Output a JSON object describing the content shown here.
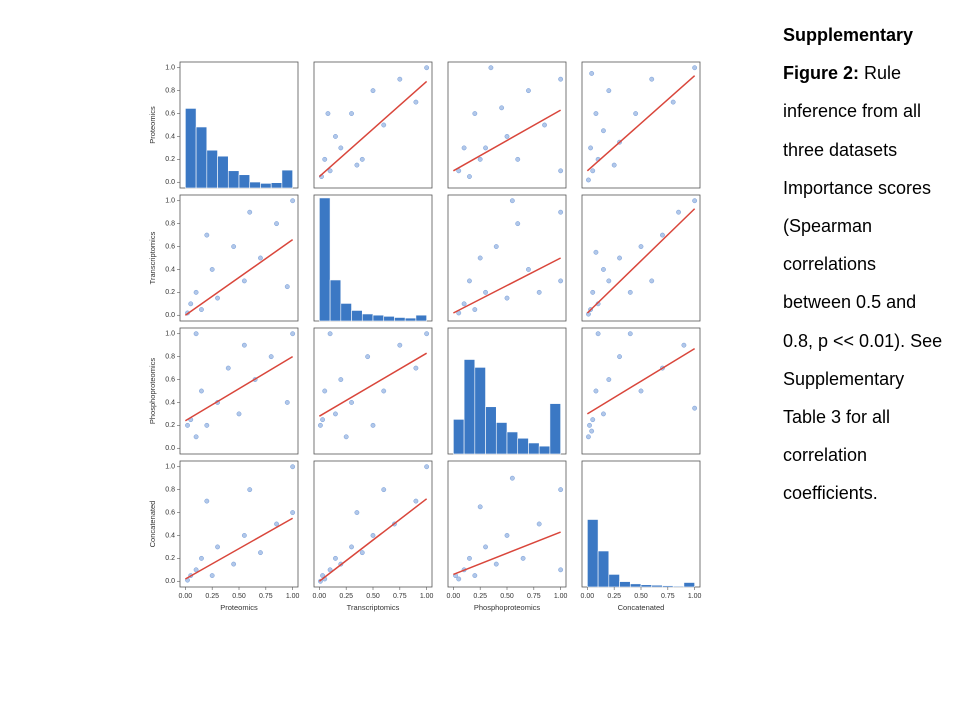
{
  "chart_data": {
    "type": "pairplot",
    "variables": [
      "Proteomics",
      "Transcriptomics",
      "Phosphoproteomics",
      "Concatenated"
    ],
    "xlim": [
      -0.05,
      1.05
    ],
    "ylim": [
      -0.05,
      1.05
    ],
    "xticks": [
      {
        "value": 0,
        "label": "0.00"
      },
      {
        "value": 0.25,
        "label": "0.25"
      },
      {
        "value": 0.5,
        "label": "0.50"
      },
      {
        "value": 0.75,
        "label": "0.75"
      },
      {
        "value": 1,
        "label": "1.00"
      }
    ],
    "yticks": [
      {
        "value": 0,
        "label": "0.0"
      },
      {
        "value": 0.2,
        "label": "0.2"
      },
      {
        "value": 0.4,
        "label": "0.4"
      },
      {
        "value": 0.6,
        "label": "0.6"
      },
      {
        "value": 0.8,
        "label": "0.8"
      },
      {
        "value": 1,
        "label": "1.0"
      }
    ],
    "point_color": "#1f5fbf",
    "fit_color": "#d9463b",
    "hist_color": "#3b78c4",
    "histograms": [
      {
        "bins": [
          0,
          0.1,
          0.2,
          0.3,
          0.4,
          0.5,
          0.6,
          0.7,
          0.8,
          0.9,
          1.0
        ],
        "counts": [
          120,
          92,
          57,
          48,
          26,
          20,
          9,
          7,
          8,
          27
        ],
        "ylim": [
          0,
          190
        ]
      },
      {
        "bins": [
          0,
          0.1,
          0.2,
          0.3,
          0.4,
          0.5,
          0.6,
          0.7,
          0.8,
          0.9,
          1.0
        ],
        "counts": [
          210,
          70,
          30,
          18,
          12,
          10,
          8,
          6,
          5,
          10
        ],
        "ylim": [
          0,
          215
        ]
      },
      {
        "bins": [
          0,
          0.1,
          0.2,
          0.3,
          0.4,
          0.5,
          0.6,
          0.7,
          0.8,
          0.9,
          1.0
        ],
        "counts": [
          22,
          60,
          55,
          30,
          20,
          14,
          10,
          7,
          5,
          32
        ],
        "ylim": [
          0,
          80
        ]
      },
      {
        "bins": [
          0,
          0.1,
          0.2,
          0.3,
          0.4,
          0.5,
          0.6,
          0.7,
          0.8,
          0.9,
          1.0
        ],
        "counts": [
          150,
          80,
          28,
          12,
          7,
          5,
          4,
          3,
          2,
          10
        ],
        "ylim": [
          0,
          280
        ]
      }
    ],
    "panels": [
      {
        "x": [
          0.02,
          0.05,
          0.1,
          0.15,
          0.2,
          0.3,
          0.4,
          0.5,
          0.6,
          0.75,
          0.9,
          1.0,
          0.08,
          0.35
        ],
        "y": [
          0.05,
          0.2,
          0.1,
          0.4,
          0.3,
          0.6,
          0.2,
          0.8,
          0.5,
          0.9,
          0.7,
          1.0,
          0.6,
          0.15
        ],
        "fit_x": [
          0,
          1
        ],
        "fit": [
          0.05,
          0.88
        ]
      },
      {
        "x": [
          0.05,
          0.1,
          0.15,
          0.2,
          0.25,
          0.35,
          0.5,
          0.6,
          0.7,
          0.85,
          1.0,
          1.0,
          0.3,
          0.45
        ],
        "y": [
          0.1,
          0.3,
          0.05,
          0.6,
          0.2,
          1.0,
          0.4,
          0.2,
          0.8,
          0.5,
          0.9,
          0.1,
          0.3,
          0.65
        ],
        "fit_x": [
          0,
          1
        ],
        "fit": [
          0.1,
          0.63
        ]
      },
      {
        "x": [
          0.01,
          0.03,
          0.05,
          0.08,
          0.1,
          0.15,
          0.2,
          0.3,
          0.45,
          0.6,
          0.8,
          1.0,
          0.04,
          0.25
        ],
        "y": [
          0.02,
          0.3,
          0.1,
          0.6,
          0.2,
          0.45,
          0.8,
          0.35,
          0.6,
          0.9,
          0.7,
          1.0,
          0.95,
          0.15
        ],
        "fit_x": [
          0,
          1
        ],
        "fit": [
          0.1,
          0.93
        ]
      },
      {
        "x": [
          0.02,
          0.05,
          0.1,
          0.15,
          0.25,
          0.3,
          0.45,
          0.55,
          0.7,
          0.85,
          0.95,
          1.0,
          0.2,
          0.6
        ],
        "y": [
          0.02,
          0.1,
          0.2,
          0.05,
          0.4,
          0.15,
          0.6,
          0.3,
          0.5,
          0.8,
          0.25,
          1.0,
          0.7,
          0.9
        ],
        "fit_x": [
          0,
          1
        ],
        "fit": [
          0.0,
          0.66
        ]
      },
      {
        "x": [
          0.05,
          0.1,
          0.15,
          0.2,
          0.3,
          0.4,
          0.5,
          0.6,
          0.7,
          0.8,
          1.0,
          1.0,
          0.25,
          0.55
        ],
        "y": [
          0.02,
          0.1,
          0.3,
          0.05,
          0.2,
          0.6,
          0.15,
          0.8,
          0.4,
          0.2,
          0.9,
          0.3,
          0.5,
          1.0
        ],
        "fit_x": [
          0,
          1
        ],
        "fit": [
          0.02,
          0.5
        ]
      },
      {
        "x": [
          0.01,
          0.03,
          0.05,
          0.1,
          0.15,
          0.2,
          0.3,
          0.4,
          0.5,
          0.7,
          0.85,
          1.0,
          0.08,
          0.6
        ],
        "y": [
          0.01,
          0.05,
          0.2,
          0.1,
          0.4,
          0.3,
          0.5,
          0.2,
          0.6,
          0.7,
          0.9,
          1.0,
          0.55,
          0.3
        ],
        "fit_x": [
          0,
          1
        ],
        "fit": [
          0.02,
          0.93
        ]
      },
      {
        "x": [
          0.02,
          0.05,
          0.1,
          0.15,
          0.2,
          0.3,
          0.4,
          0.5,
          0.65,
          0.8,
          0.95,
          1.0,
          0.1,
          0.55
        ],
        "y": [
          0.2,
          0.25,
          1.0,
          0.5,
          0.2,
          0.4,
          0.7,
          0.3,
          0.6,
          0.8,
          0.4,
          1.0,
          0.1,
          0.9
        ],
        "fit_x": [
          0,
          1
        ],
        "fit": [
          0.24,
          0.8
        ]
      },
      {
        "x": [
          0.01,
          0.03,
          0.05,
          0.1,
          0.15,
          0.2,
          0.3,
          0.45,
          0.6,
          0.75,
          0.9,
          1.0,
          0.5,
          0.25
        ],
        "y": [
          0.2,
          0.25,
          0.5,
          1.0,
          0.3,
          0.6,
          0.4,
          0.8,
          0.5,
          0.9,
          0.7,
          1.0,
          0.2,
          0.1
        ],
        "fit_x": [
          0,
          1
        ],
        "fit": [
          0.28,
          0.83
        ]
      },
      {
        "x": [
          0.01,
          0.02,
          0.05,
          0.08,
          0.1,
          0.15,
          0.2,
          0.3,
          0.5,
          0.7,
          0.9,
          1.0,
          0.04,
          0.4
        ],
        "y": [
          0.1,
          0.2,
          0.25,
          0.5,
          1.0,
          0.3,
          0.6,
          0.8,
          0.5,
          0.7,
          0.9,
          0.35,
          0.15,
          1.0
        ],
        "fit_x": [
          0,
          1
        ],
        "fit": [
          0.3,
          0.87
        ]
      },
      {
        "x": [
          0.02,
          0.05,
          0.1,
          0.15,
          0.25,
          0.3,
          0.45,
          0.55,
          0.7,
          0.85,
          1.0,
          1.0,
          0.2,
          0.6
        ],
        "y": [
          0.01,
          0.05,
          0.1,
          0.2,
          0.05,
          0.3,
          0.15,
          0.4,
          0.25,
          0.5,
          1.0,
          0.6,
          0.7,
          0.8
        ],
        "fit_x": [
          0,
          1
        ],
        "fit": [
          0.02,
          0.55
        ]
      },
      {
        "x": [
          0.01,
          0.03,
          0.05,
          0.1,
          0.15,
          0.2,
          0.3,
          0.4,
          0.5,
          0.7,
          0.9,
          1.0,
          0.35,
          0.6
        ],
        "y": [
          0.0,
          0.05,
          0.02,
          0.1,
          0.2,
          0.15,
          0.3,
          0.25,
          0.4,
          0.5,
          0.7,
          1.0,
          0.6,
          0.8
        ],
        "fit_x": [
          0,
          1
        ],
        "fit": [
          0.0,
          0.72
        ]
      },
      {
        "x": [
          0.02,
          0.05,
          0.1,
          0.15,
          0.2,
          0.3,
          0.4,
          0.5,
          0.65,
          0.8,
          1.0,
          1.0,
          0.25,
          0.55
        ],
        "y": [
          0.05,
          0.02,
          0.1,
          0.2,
          0.05,
          0.3,
          0.15,
          0.4,
          0.2,
          0.5,
          0.8,
          0.1,
          0.65,
          0.9
        ],
        "fit_x": [
          0,
          1
        ],
        "fit": [
          0.06,
          0.43
        ]
      }
    ]
  },
  "slide": {
    "caption_bold": "Supplementary Figure 2:",
    "caption": "Rule inference from all three datasets Importance scores (Spearman correlations between 0.5 and 0.8, p << 0.01). See Supplementary Table 3 for all correlation coefficients."
  }
}
